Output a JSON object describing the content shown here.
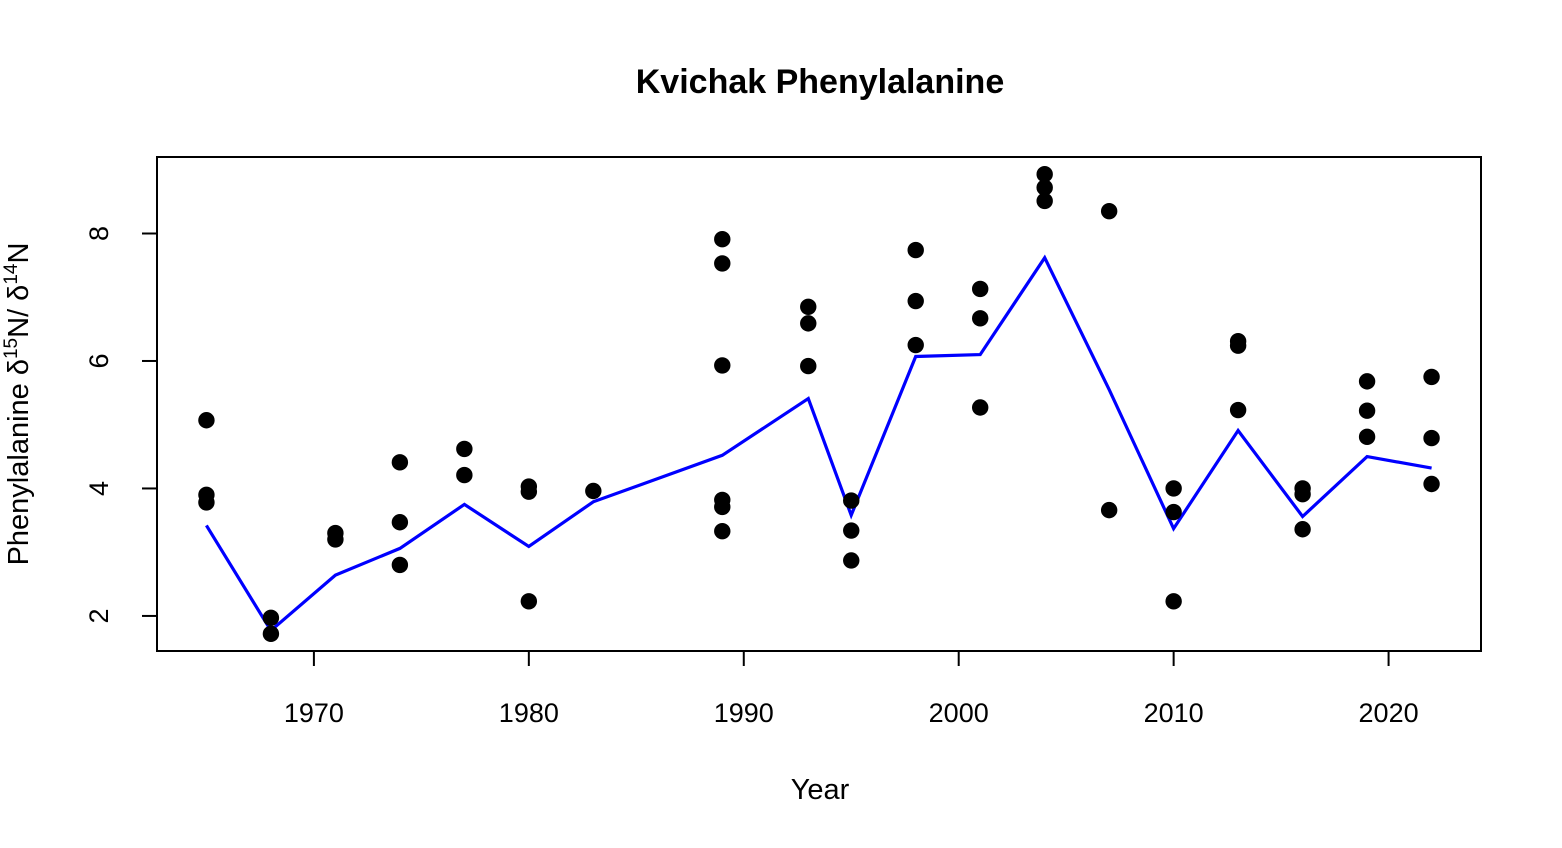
{
  "chart_data": {
    "type": "scatter",
    "title": "Kvichak Phenylalanine",
    "xlabel": "Year",
    "ylabel": {
      "prefix": "Phenylalanine δ",
      "sup1": "15",
      "mid": "N/ δ",
      "sup2": "14",
      "suffix": "N"
    },
    "xlim": [
      1962.7,
      2024.3
    ],
    "ylim": [
      1.45,
      9.2
    ],
    "xticks": [
      1970,
      1980,
      1990,
      2000,
      2010,
      2020
    ],
    "yticks": [
      2,
      4,
      6,
      8
    ],
    "grid": false,
    "points": {
      "color": "#000000",
      "data": [
        [
          1965,
          5.07
        ],
        [
          1965,
          3.9
        ],
        [
          1965,
          3.78
        ],
        [
          1968,
          1.97
        ],
        [
          1968,
          1.72
        ],
        [
          1971,
          3.3
        ],
        [
          1971,
          3.2
        ],
        [
          1974,
          4.41
        ],
        [
          1974,
          3.47
        ],
        [
          1974,
          2.8
        ],
        [
          1977,
          4.62
        ],
        [
          1977,
          4.21
        ],
        [
          1980,
          4.03
        ],
        [
          1980,
          3.95
        ],
        [
          1980,
          2.23
        ],
        [
          1983,
          3.96
        ],
        [
          1989,
          7.91
        ],
        [
          1989,
          7.53
        ],
        [
          1989,
          5.93
        ],
        [
          1989,
          3.82
        ],
        [
          1989,
          3.71
        ],
        [
          1989,
          3.33
        ],
        [
          1993,
          6.85
        ],
        [
          1993,
          6.59
        ],
        [
          1993,
          5.92
        ],
        [
          1995,
          3.81
        ],
        [
          1995,
          3.34
        ],
        [
          1995,
          2.87
        ],
        [
          1998,
          7.74
        ],
        [
          1998,
          6.94
        ],
        [
          1998,
          6.25
        ],
        [
          2001,
          7.13
        ],
        [
          2001,
          6.67
        ],
        [
          2001,
          5.27
        ],
        [
          2004,
          8.93
        ],
        [
          2004,
          8.72
        ],
        [
          2004,
          8.51
        ],
        [
          2007,
          8.35
        ],
        [
          2007,
          3.66
        ],
        [
          2010,
          4.0
        ],
        [
          2010,
          3.63
        ],
        [
          2010,
          2.23
        ],
        [
          2013,
          6.31
        ],
        [
          2013,
          6.24
        ],
        [
          2013,
          5.23
        ],
        [
          2016,
          4.0
        ],
        [
          2016,
          3.91
        ],
        [
          2016,
          3.36
        ],
        [
          2019,
          5.68
        ],
        [
          2019,
          5.22
        ],
        [
          2019,
          4.81
        ],
        [
          2022,
          5.75
        ],
        [
          2022,
          4.79
        ],
        [
          2022,
          4.07
        ]
      ]
    },
    "line": {
      "color": "#0000ff",
      "x": [
        1965,
        1968,
        1971,
        1974,
        1977,
        1980,
        1983,
        1989,
        1993,
        1995,
        1998,
        2001,
        2004,
        2007,
        2010,
        2013,
        2016,
        2019,
        2022
      ],
      "y": [
        3.42,
        1.77,
        2.64,
        3.06,
        3.75,
        3.09,
        3.79,
        4.52,
        5.41,
        3.58,
        6.07,
        6.1,
        7.62,
        5.55,
        3.37,
        4.91,
        3.56,
        4.5,
        4.32
      ]
    }
  }
}
